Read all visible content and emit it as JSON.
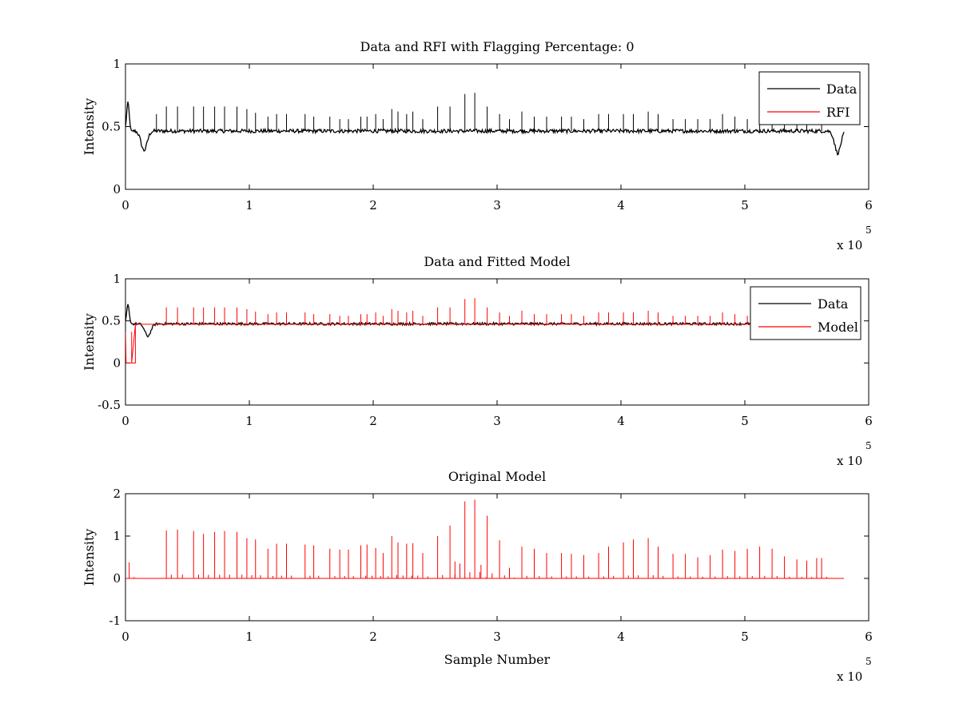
{
  "chart_data": [
    {
      "type": "line",
      "title": "Data and RFI with Flagging Percentage: 0",
      "xlabel": "",
      "ylabel": "Intensity",
      "xlim": [
        0,
        6
      ],
      "ylim": [
        0,
        1
      ],
      "xticks": [
        "0",
        "1",
        "2",
        "3",
        "4",
        "5",
        "6"
      ],
      "yticks": [
        "0",
        "0.5",
        "1"
      ],
      "x_multiplier": "x 10",
      "x_exponent": "5",
      "legend_position": "top-right",
      "series": [
        {
          "name": "Data",
          "color": "#000000",
          "baseline": 0.465,
          "dips": [
            [
              0.15,
              0.31
            ],
            [
              5.75,
              0.29
            ]
          ],
          "start_peak": [
            0.02,
            0.7
          ],
          "spikes": [
            [
              0.25,
              0.6
            ],
            [
              0.33,
              0.66
            ],
            [
              0.42,
              0.66
            ],
            [
              0.55,
              0.66
            ],
            [
              0.63,
              0.66
            ],
            [
              0.72,
              0.66
            ],
            [
              0.8,
              0.66
            ],
            [
              0.9,
              0.66
            ],
            [
              0.98,
              0.64
            ],
            [
              1.05,
              0.61
            ],
            [
              1.15,
              0.58
            ],
            [
              1.22,
              0.6
            ],
            [
              1.3,
              0.6
            ],
            [
              1.45,
              0.6
            ],
            [
              1.52,
              0.58
            ],
            [
              1.65,
              0.58
            ],
            [
              1.73,
              0.56
            ],
            [
              1.8,
              0.56
            ],
            [
              1.9,
              0.58
            ],
            [
              1.95,
              0.58
            ],
            [
              2.02,
              0.6
            ],
            [
              2.08,
              0.56
            ],
            [
              2.15,
              0.64
            ],
            [
              2.2,
              0.62
            ],
            [
              2.27,
              0.6
            ],
            [
              2.32,
              0.62
            ],
            [
              2.4,
              0.56
            ],
            [
              2.52,
              0.66
            ],
            [
              2.62,
              0.66
            ],
            [
              2.74,
              0.76
            ],
            [
              2.82,
              0.77
            ],
            [
              2.92,
              0.66
            ],
            [
              3.02,
              0.6
            ],
            [
              3.1,
              0.56
            ],
            [
              3.2,
              0.62
            ],
            [
              3.3,
              0.58
            ],
            [
              3.4,
              0.58
            ],
            [
              3.52,
              0.58
            ],
            [
              3.6,
              0.58
            ],
            [
              3.7,
              0.56
            ],
            [
              3.82,
              0.6
            ],
            [
              3.9,
              0.6
            ],
            [
              4.02,
              0.6
            ],
            [
              4.1,
              0.6
            ],
            [
              4.22,
              0.62
            ],
            [
              4.3,
              0.6
            ],
            [
              4.42,
              0.56
            ],
            [
              4.52,
              0.56
            ],
            [
              4.62,
              0.56
            ],
            [
              4.72,
              0.56
            ],
            [
              4.82,
              0.6
            ],
            [
              4.92,
              0.58
            ],
            [
              5.02,
              0.56
            ],
            [
              5.12,
              0.58
            ],
            [
              5.22,
              0.58
            ],
            [
              5.32,
              0.56
            ],
            [
              5.42,
              0.56
            ],
            [
              5.5,
              0.56
            ],
            [
              5.62,
              0.56
            ]
          ]
        },
        {
          "name": "RFI",
          "color": "#ff0000"
        }
      ]
    },
    {
      "type": "line",
      "title": "Data and Fitted Model",
      "xlabel": "",
      "ylabel": "Intensity",
      "xlim": [
        0,
        6
      ],
      "ylim": [
        -0.5,
        1
      ],
      "xticks": [
        "0",
        "1",
        "2",
        "3",
        "4",
        "5",
        "6"
      ],
      "yticks": [
        "-0.5",
        "0",
        "0.5",
        "1"
      ],
      "x_multiplier": "x 10",
      "x_exponent": "5",
      "legend_position": "top-right",
      "series": [
        {
          "name": "Data",
          "color": "#000000",
          "baseline": 0.465,
          "start_peak": [
            0.02,
            0.7
          ],
          "dips": [
            [
              0.18,
              0.32
            ]
          ]
        },
        {
          "name": "Model",
          "color": "#ff0000",
          "baseline": 0.46,
          "zero_region": [
            0.0,
            0.08
          ],
          "spikes": [
            [
              0.33,
              0.66
            ],
            [
              0.42,
              0.66
            ],
            [
              0.55,
              0.66
            ],
            [
              0.63,
              0.66
            ],
            [
              0.72,
              0.66
            ],
            [
              0.8,
              0.66
            ],
            [
              0.9,
              0.66
            ],
            [
              0.98,
              0.64
            ],
            [
              1.05,
              0.61
            ],
            [
              1.15,
              0.58
            ],
            [
              1.22,
              0.6
            ],
            [
              1.3,
              0.6
            ],
            [
              1.45,
              0.6
            ],
            [
              1.52,
              0.58
            ],
            [
              1.65,
              0.58
            ],
            [
              1.73,
              0.56
            ],
            [
              1.8,
              0.56
            ],
            [
              1.9,
              0.58
            ],
            [
              1.95,
              0.58
            ],
            [
              2.02,
              0.6
            ],
            [
              2.08,
              0.56
            ],
            [
              2.15,
              0.64
            ],
            [
              2.2,
              0.62
            ],
            [
              2.27,
              0.6
            ],
            [
              2.32,
              0.62
            ],
            [
              2.4,
              0.56
            ],
            [
              2.52,
              0.66
            ],
            [
              2.62,
              0.66
            ],
            [
              2.74,
              0.76
            ],
            [
              2.82,
              0.77
            ],
            [
              2.92,
              0.66
            ],
            [
              3.02,
              0.6
            ],
            [
              3.1,
              0.56
            ],
            [
              3.2,
              0.62
            ],
            [
              3.3,
              0.58
            ],
            [
              3.4,
              0.58
            ],
            [
              3.52,
              0.58
            ],
            [
              3.6,
              0.58
            ],
            [
              3.7,
              0.56
            ],
            [
              3.82,
              0.6
            ],
            [
              3.9,
              0.6
            ],
            [
              4.02,
              0.6
            ],
            [
              4.1,
              0.6
            ],
            [
              4.22,
              0.62
            ],
            [
              4.3,
              0.6
            ],
            [
              4.42,
              0.56
            ],
            [
              4.52,
              0.56
            ],
            [
              4.62,
              0.56
            ],
            [
              4.72,
              0.56
            ],
            [
              4.82,
              0.6
            ],
            [
              4.92,
              0.58
            ],
            [
              5.02,
              0.56
            ]
          ]
        }
      ]
    },
    {
      "type": "line",
      "title": "Original Model",
      "xlabel": "Sample Number",
      "ylabel": "Intensity",
      "xlim": [
        0,
        6
      ],
      "ylim": [
        -1,
        2
      ],
      "xticks": [
        "0",
        "1",
        "2",
        "3",
        "4",
        "5",
        "6"
      ],
      "yticks": [
        "-1",
        "0",
        "1",
        "2"
      ],
      "x_multiplier": "x 10",
      "x_exponent": "5",
      "series": [
        {
          "name": "",
          "color": "#ff0000",
          "baseline": 0.0,
          "x_end": 5.8,
          "spikes": [
            [
              0.03,
              0.38
            ],
            [
              0.33,
              1.13
            ],
            [
              0.42,
              1.15
            ],
            [
              0.55,
              1.12
            ],
            [
              0.63,
              1.05
            ],
            [
              0.72,
              1.1
            ],
            [
              0.8,
              1.12
            ],
            [
              0.9,
              1.1
            ],
            [
              0.98,
              0.95
            ],
            [
              1.05,
              0.92
            ],
            [
              1.15,
              0.7
            ],
            [
              1.22,
              0.82
            ],
            [
              1.3,
              0.82
            ],
            [
              1.45,
              0.8
            ],
            [
              1.52,
              0.78
            ],
            [
              1.65,
              0.7
            ],
            [
              1.73,
              0.68
            ],
            [
              1.8,
              0.68
            ],
            [
              1.9,
              0.78
            ],
            [
              1.95,
              0.8
            ],
            [
              2.02,
              0.72
            ],
            [
              2.08,
              0.6
            ],
            [
              2.15,
              1.0
            ],
            [
              2.2,
              0.85
            ],
            [
              2.27,
              0.82
            ],
            [
              2.32,
              0.83
            ],
            [
              2.4,
              0.6
            ],
            [
              2.52,
              1.0
            ],
            [
              2.62,
              1.25
            ],
            [
              2.66,
              0.4
            ],
            [
              2.7,
              0.35
            ],
            [
              2.74,
              1.82
            ],
            [
              2.82,
              1.86
            ],
            [
              2.87,
              0.32
            ],
            [
              2.92,
              1.48
            ],
            [
              3.02,
              0.9
            ],
            [
              3.1,
              0.25
            ],
            [
              3.2,
              0.75
            ],
            [
              3.3,
              0.7
            ],
            [
              3.4,
              0.6
            ],
            [
              3.52,
              0.6
            ],
            [
              3.6,
              0.58
            ],
            [
              3.7,
              0.55
            ],
            [
              3.82,
              0.6
            ],
            [
              3.9,
              0.75
            ],
            [
              4.02,
              0.85
            ],
            [
              4.1,
              0.92
            ],
            [
              4.22,
              0.95
            ],
            [
              4.3,
              0.75
            ],
            [
              4.42,
              0.58
            ],
            [
              4.52,
              0.58
            ],
            [
              4.62,
              0.5
            ],
            [
              4.72,
              0.55
            ],
            [
              4.82,
              0.68
            ],
            [
              4.92,
              0.65
            ],
            [
              5.02,
              0.7
            ],
            [
              5.12,
              0.75
            ],
            [
              5.22,
              0.7
            ],
            [
              5.32,
              0.52
            ],
            [
              5.42,
              0.45
            ],
            [
              5.5,
              0.42
            ],
            [
              5.58,
              0.48
            ],
            [
              5.62,
              0.48
            ]
          ]
        }
      ]
    }
  ]
}
